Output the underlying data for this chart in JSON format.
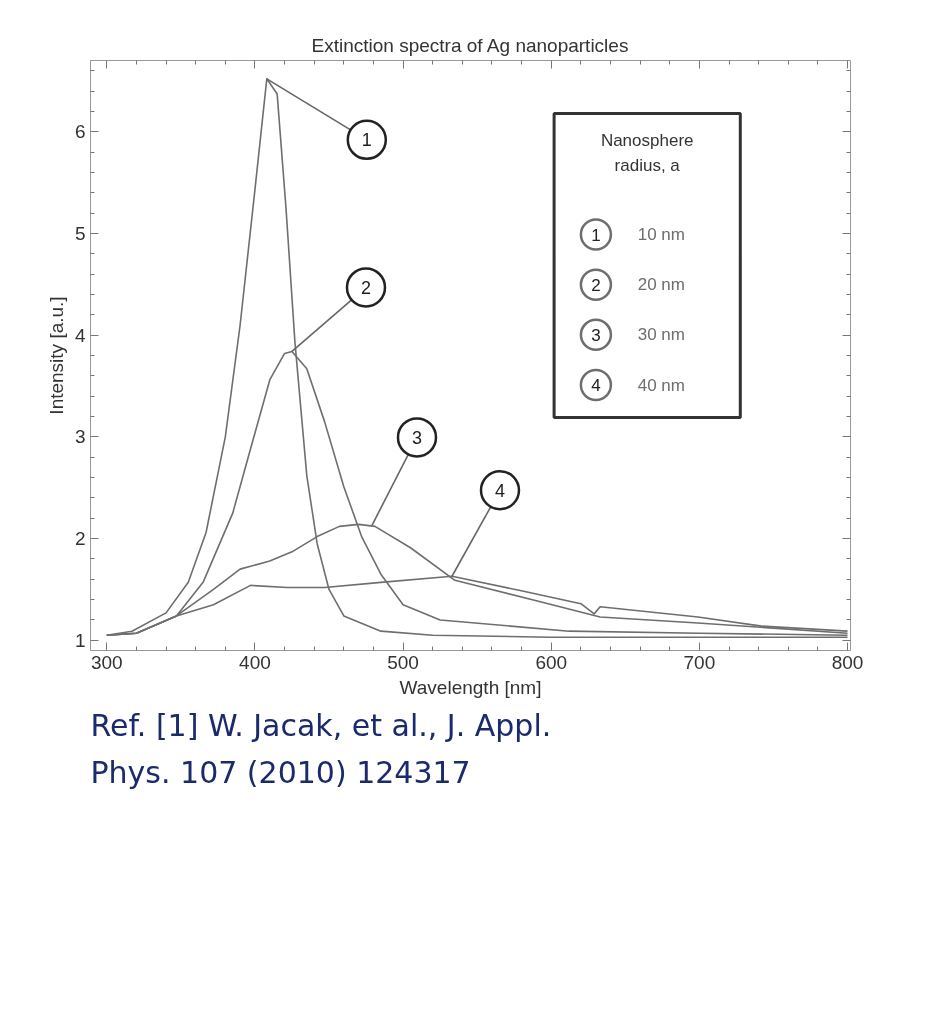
{
  "chart_data": {
    "type": "line",
    "title": "Extinction spectra of Ag nanoparticles",
    "xlabel": "Wavelength [nm]",
    "ylabel": "Intensity [a.u.]",
    "legend_title": "Nanosphere radius, a",
    "legend": "top right",
    "grid": false,
    "xlim": [
      289,
      802
    ],
    "ylim": [
      0.9,
      6.7
    ],
    "xticks": [
      300,
      400,
      500,
      600,
      700,
      800
    ],
    "yticks": [
      1,
      2,
      3,
      4,
      5,
      6
    ],
    "series": [
      {
        "name": "10 nm",
        "color": "#6e6e6e",
        "x": [
          300,
          317,
          340,
          355,
          367,
          380,
          390,
          400,
          408,
          415,
          421,
          427,
          435,
          442,
          450,
          460,
          485,
          520,
          600,
          700,
          800
        ],
        "values": [
          1.05,
          1.09,
          1.27,
          1.57,
          2.06,
          3.0,
          4.1,
          5.43,
          6.52,
          6.37,
          5.24,
          3.93,
          2.62,
          1.95,
          1.5,
          1.24,
          1.09,
          1.05,
          1.03,
          1.03,
          1.03
        ]
      },
      {
        "name": "20 nm",
        "color": "#6e6e6e",
        "x": [
          300,
          320,
          347,
          365,
          385,
          397,
          410,
          420,
          425,
          435,
          447,
          460,
          472,
          485,
          500,
          525,
          612,
          700,
          800
        ],
        "values": [
          1.05,
          1.07,
          1.24,
          1.57,
          2.25,
          2.88,
          3.56,
          3.82,
          3.84,
          3.67,
          3.15,
          2.51,
          2.02,
          1.65,
          1.35,
          1.2,
          1.09,
          1.07,
          1.05
        ]
      },
      {
        "name": "30 nm",
        "color": "#6e6e6e",
        "x": [
          300,
          320,
          347,
          372,
          390,
          410,
          425,
          442,
          457,
          470,
          481,
          505,
          535,
          590,
          633,
          699,
          800
        ],
        "values": [
          1.05,
          1.07,
          1.24,
          1.5,
          1.7,
          1.78,
          1.87,
          2.02,
          2.12,
          2.14,
          2.12,
          1.91,
          1.59,
          1.39,
          1.23,
          1.17,
          1.07
        ]
      },
      {
        "name": "40 nm",
        "color": "#6e6e6e",
        "x": [
          300,
          320,
          347,
          372,
          397,
          422,
          447,
          485,
          533,
          579,
          620,
          629,
          633,
          699,
          742,
          800
        ],
        "values": [
          1.05,
          1.07,
          1.24,
          1.35,
          1.54,
          1.52,
          1.52,
          1.57,
          1.63,
          1.49,
          1.36,
          1.26,
          1.33,
          1.23,
          1.14,
          1.09
        ]
      }
    ],
    "annotations": [
      {
        "text": "1",
        "x": 408,
        "y": 6.52
      },
      {
        "text": "2",
        "x": 425,
        "y": 3.84
      },
      {
        "text": "3",
        "x": 479,
        "y": 2.13
      },
      {
        "text": "4",
        "x": 533,
        "y": 1.63
      },
      "Ref. [1] W. Jacak, et al., J. Appl.",
      "Phys. 107 (2010) 124317"
    ]
  }
}
